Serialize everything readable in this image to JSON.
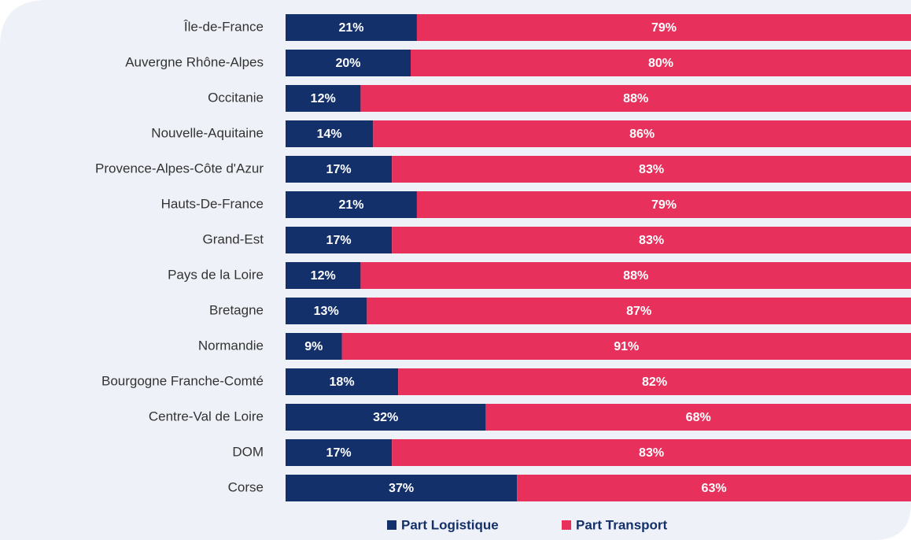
{
  "chart_data": {
    "type": "stacked_bar_horizontal",
    "categories": [
      "Île-de-France",
      "Auvergne Rhône-Alpes",
      "Occitanie",
      "Nouvelle-Aquitaine",
      "Provence-Alpes-Côte d'Azur",
      "Hauts-De-France",
      "Grand-Est",
      "Pays de la Loire",
      "Bretagne",
      "Normandie",
      "Bourgogne Franche-Comté",
      "Centre-Val de Loire",
      "DOM",
      "Corse"
    ],
    "xlim": [
      0,
      100
    ],
    "legend": "bottom",
    "series": [
      {
        "name": "Part Logistique",
        "color": "#13306b",
        "values": [
          21,
          20,
          12,
          14,
          17,
          21,
          17,
          12,
          13,
          9,
          18,
          32,
          17,
          37
        ],
        "value_labels": [
          "21%",
          "20%",
          "12%",
          "14%",
          "17%",
          "21%",
          "17%",
          "12%",
          "13%",
          "9%",
          "18%",
          "32%",
          "17%",
          "37%"
        ]
      },
      {
        "name": "Part Transport",
        "color": "#e8305c",
        "values": [
          79,
          80,
          88,
          86,
          83,
          79,
          83,
          88,
          87,
          91,
          82,
          68,
          83,
          63
        ],
        "value_labels": [
          "79%",
          "80%",
          "88%",
          "86%",
          "83%",
          "79%",
          "83%",
          "88%",
          "87%",
          "91%",
          "82%",
          "68%",
          "83%",
          "63%"
        ]
      }
    ]
  }
}
